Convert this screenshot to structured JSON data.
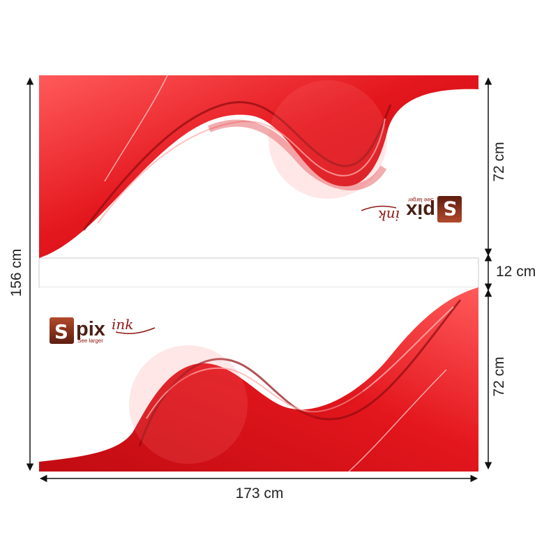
{
  "diagram": {
    "dimensions": {
      "total_height": "156 cm",
      "top_panel_height": "72 cm",
      "gap_height": "12 cm",
      "bottom_panel_height": "72 cm",
      "total_width": "173 cm"
    },
    "logo": {
      "brand_mark": "S",
      "brand_main": "pix",
      "brand_script": "ink",
      "tagline": "See larger"
    },
    "colors": {
      "primary_red": "#e0141b",
      "dark_red": "#b30a10",
      "light_red": "#ff8a8a",
      "logo_brown": "#4a2016",
      "logo_box": "#7a2a18"
    }
  }
}
